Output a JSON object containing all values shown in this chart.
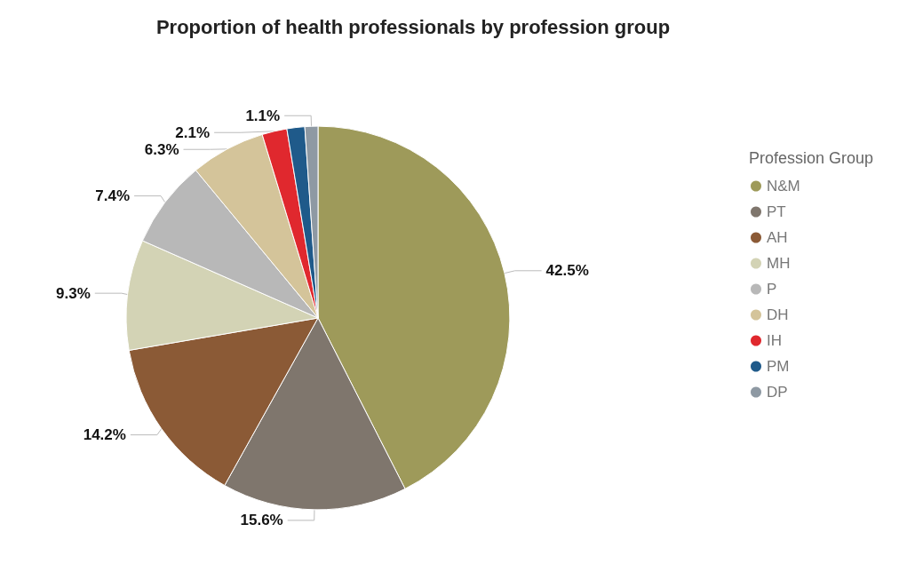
{
  "chart_data": {
    "type": "pie",
    "title": "Proportion of health professionals by profession group",
    "legend_title": "Profession Group",
    "legend": "right",
    "categories": [
      "N&M",
      "PT",
      "AH",
      "MH",
      "P",
      "DH",
      "IH",
      "PM",
      "DP"
    ],
    "values": [
      42.5,
      15.6,
      14.2,
      9.3,
      7.4,
      6.3,
      2.1,
      1.5,
      1.1
    ],
    "value_labels": [
      "42.5%",
      "15.6%",
      "14.2%",
      "9.3%",
      "7.4%",
      "6.3%",
      "2.1%",
      null,
      "1.1%"
    ],
    "colors": [
      "#9e9a5a",
      "#7f766d",
      "#8b5a36",
      "#d3d3b5",
      "#b8b8b8",
      "#d4c49a",
      "#e0282e",
      "#1f5a8a",
      "#8e99a3"
    ]
  }
}
